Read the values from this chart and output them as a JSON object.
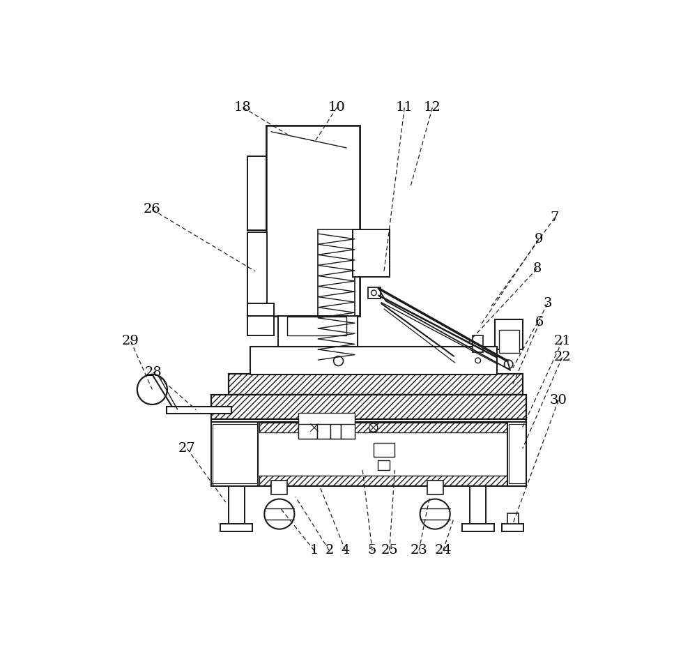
{
  "bg_color": "#ffffff",
  "lc": "#1a1a1a",
  "figsize": [
    10.0,
    9.32
  ],
  "dpi": 100
}
